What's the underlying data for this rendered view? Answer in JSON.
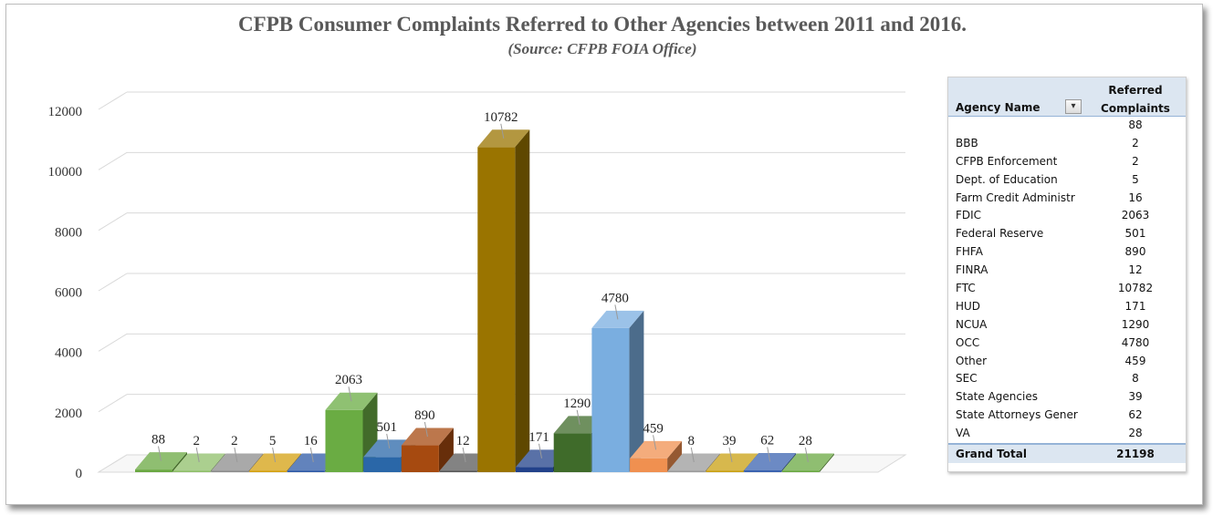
{
  "chart_data": {
    "type": "bar",
    "title": "CFPB Consumer Complaints Referred to Other Agencies between 2011 and 2016.",
    "subtitle": "(Source: CFPB FOIA Office)",
    "xlabel": "",
    "ylabel": "",
    "ylim": [
      0,
      12000
    ],
    "y_ticks": [
      "0",
      "2000",
      "4000",
      "6000",
      "8000",
      "10000",
      "12000"
    ],
    "categories": [
      "",
      "BBB",
      "CFPB Enforcement",
      "Dept. of Education",
      "Farm Credit Administration",
      "FDIC",
      "Federal Reserve",
      "FHFA",
      "FINRA",
      "FTC",
      "HUD",
      "NCUA",
      "OCC",
      "Other",
      "SEC",
      "State Agencies",
      "State Attorneys General",
      "VA"
    ],
    "values": [
      88,
      2,
      2,
      5,
      16,
      2063,
      501,
      890,
      12,
      10782,
      171,
      1290,
      4780,
      459,
      8,
      39,
      62,
      28
    ],
    "colors": [
      "#6aa842",
      "#8fbf6a",
      "#8c8c8c",
      "#d4a010",
      "#2e5aa6",
      "#6aac43",
      "#2a67a8",
      "#a64a10",
      "#595959",
      "#9a7400",
      "#22418a",
      "#3f6b2a",
      "#7aaee0",
      "#f09050",
      "#9b9b9b",
      "#c9a012",
      "#3b63b0",
      "#6aa842"
    ]
  },
  "pivot": {
    "header_agency": "Agency Name",
    "header_ref1": "Referred",
    "header_ref2": "Complaints",
    "rows": [
      {
        "name": "",
        "value": "88"
      },
      {
        "name": "BBB",
        "value": "2"
      },
      {
        "name": "CFPB Enforcement",
        "value": "2"
      },
      {
        "name": "Dept. of Education",
        "value": "5"
      },
      {
        "name": "Farm Credit Administr",
        "value": "16"
      },
      {
        "name": "FDIC",
        "value": "2063"
      },
      {
        "name": "Federal Reserve",
        "value": "501"
      },
      {
        "name": "FHFA",
        "value": "890"
      },
      {
        "name": "FINRA",
        "value": "12"
      },
      {
        "name": "FTC",
        "value": "10782"
      },
      {
        "name": "HUD",
        "value": "171"
      },
      {
        "name": "NCUA",
        "value": "1290"
      },
      {
        "name": "OCC",
        "value": "4780"
      },
      {
        "name": "Other",
        "value": "459"
      },
      {
        "name": "SEC",
        "value": "8"
      },
      {
        "name": "State Agencies",
        "value": "39"
      },
      {
        "name": "State Attorneys Gener",
        "value": "62"
      },
      {
        "name": "VA",
        "value": "28"
      }
    ],
    "total_label": "Grand Total",
    "total_value": "21198"
  }
}
